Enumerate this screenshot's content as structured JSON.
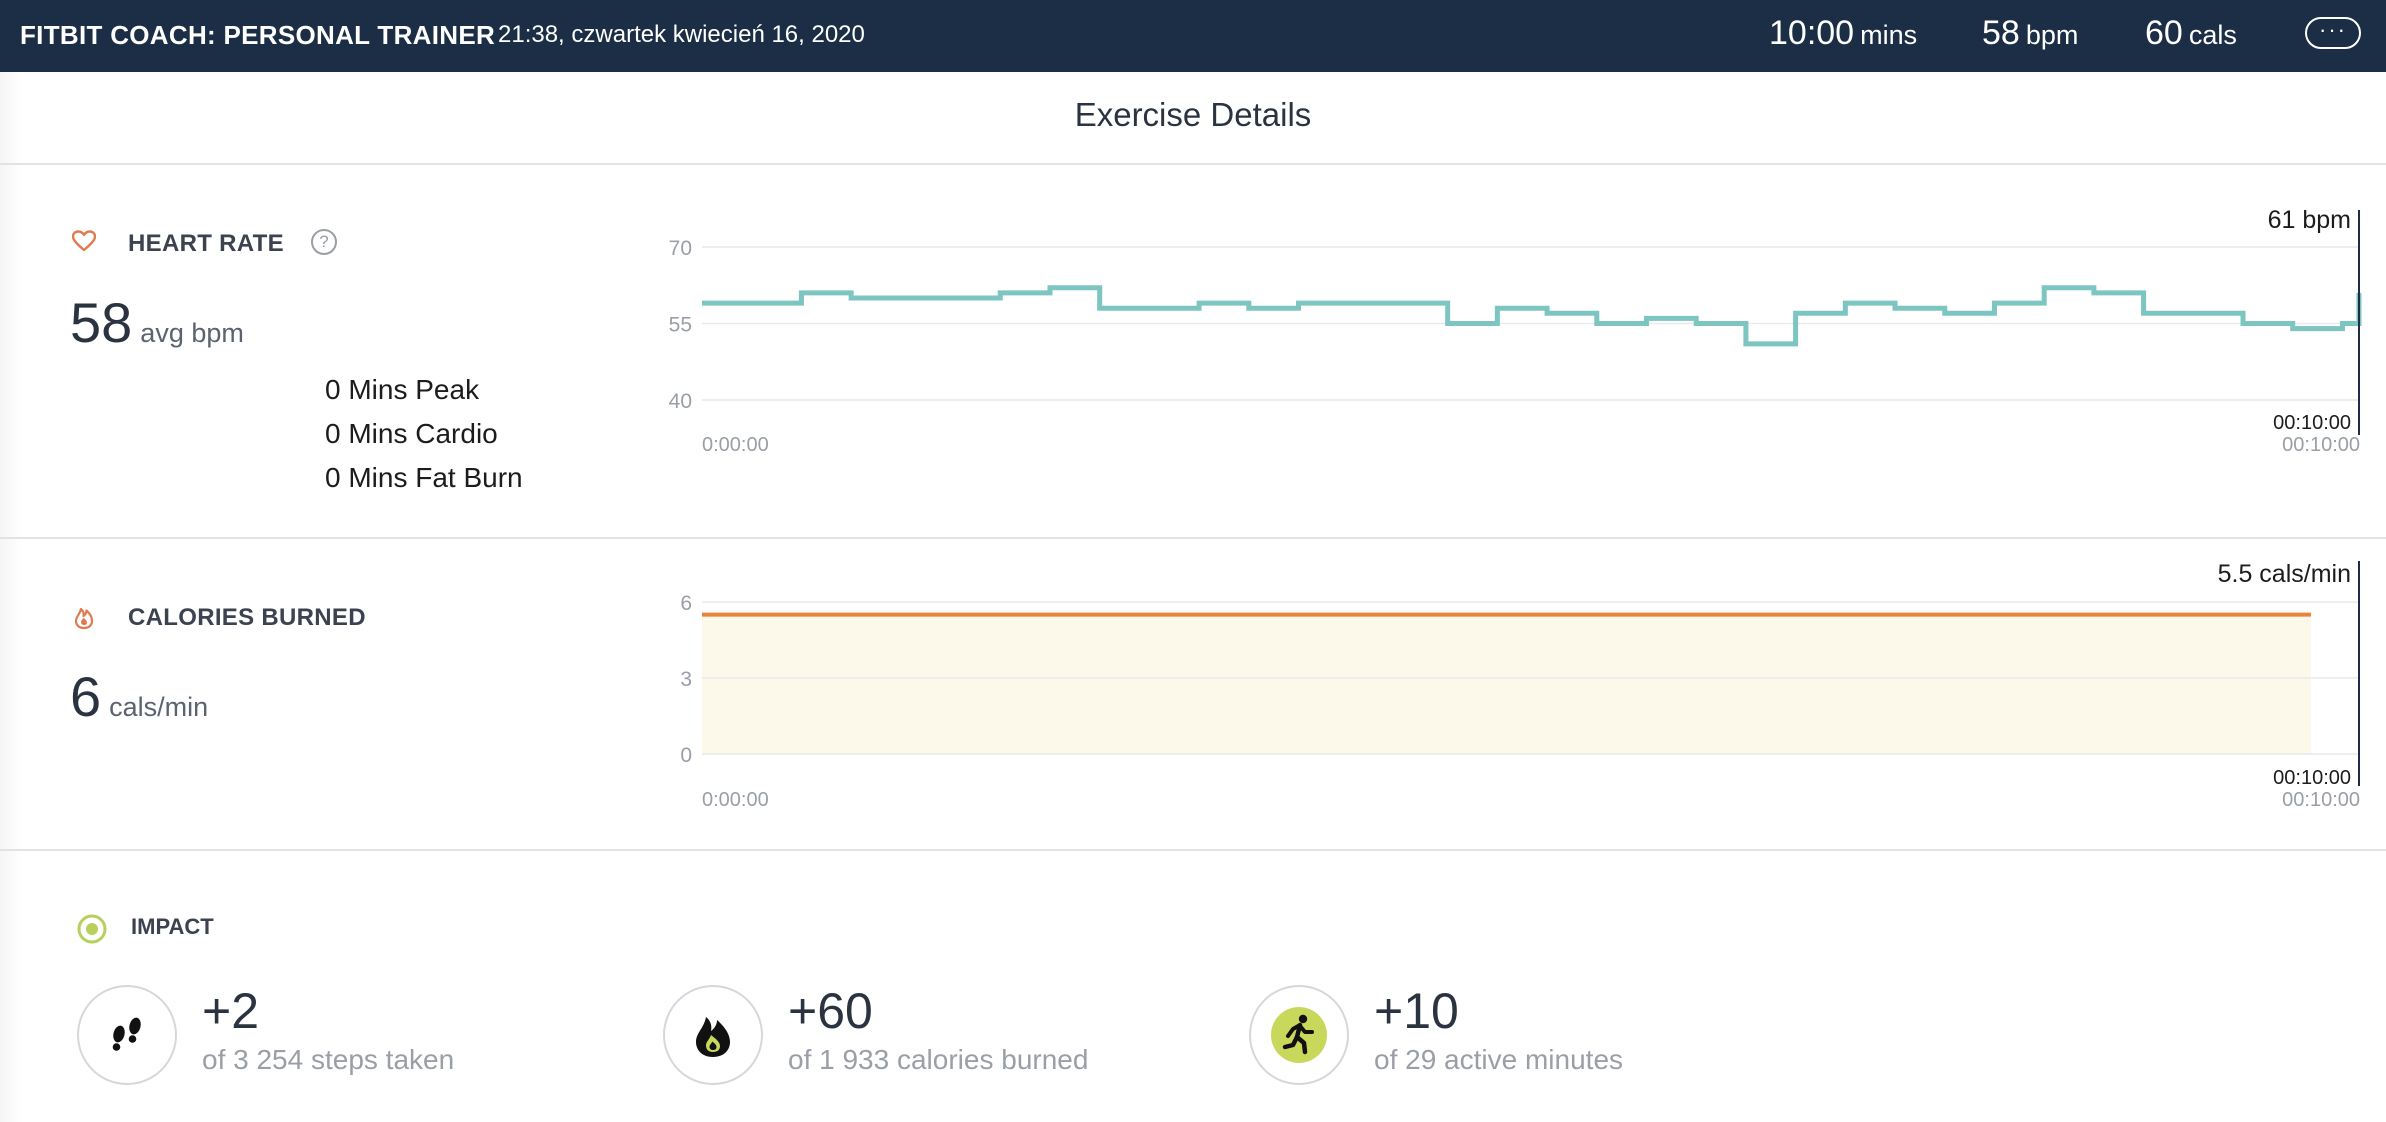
{
  "header": {
    "app_title": "FITBIT COACH: PERSONAL TRAINER",
    "datetime": "21:38, czwartek kwiecień 16, 2020",
    "stats": [
      {
        "value": "10:00",
        "unit": "mins"
      },
      {
        "value": "58",
        "unit": "bpm"
      },
      {
        "value": "60",
        "unit": "cals"
      }
    ],
    "more_label": "···"
  },
  "page_title": "Exercise Details",
  "heart_rate": {
    "heading": "HEART RATE",
    "help_label": "?",
    "avg_value": "58",
    "avg_unit": "avg bpm",
    "zones": [
      "0 Mins Peak",
      "0 Mins Cardio",
      "0 Mins Fat Burn"
    ],
    "current_readout": "61 bpm",
    "cursor_time": "00:10:00",
    "accent_color": "#e07b4f",
    "line_color": "#7cc5c1"
  },
  "calories": {
    "heading": "CALORIES BURNED",
    "value": "6",
    "unit": "cals/min",
    "current_readout": "5.5 cals/min",
    "cursor_time": "00:10:00",
    "line_color": "#e8833a",
    "fill_color": "#fcf8ea"
  },
  "impact": {
    "heading": "IMPACT",
    "cards": [
      {
        "icon": "footsteps-icon",
        "value": "+2",
        "desc": "of 3 254 steps taken"
      },
      {
        "icon": "flame-icon",
        "value": "+60",
        "desc": "of 1 933 calories burned"
      },
      {
        "icon": "running-person-icon",
        "value": "+10",
        "desc": "of 29 active minutes"
      }
    ]
  },
  "chart_data": [
    {
      "type": "line",
      "title": "",
      "xlabel": "",
      "ylabel": "",
      "x_ticks": [
        "0:00:00",
        "00:10:00"
      ],
      "y_ticks": [
        40,
        55,
        70
      ],
      "ylim": [
        40,
        70
      ],
      "grid": true,
      "x": [
        0,
        0.3,
        0.6,
        0.9,
        1.2,
        1.5,
        1.8,
        2.1,
        2.4,
        2.7,
        3.0,
        3.3,
        3.6,
        3.9,
        4.2,
        4.5,
        4.8,
        5.1,
        5.4,
        5.7,
        6.0,
        6.3,
        6.6,
        6.9,
        7.2,
        7.5,
        7.8,
        8.1,
        8.4,
        8.7,
        9.0,
        9.3,
        9.6,
        9.9,
        10.0
      ],
      "series": [
        {
          "name": "",
          "values": [
            59,
            59,
            61,
            60,
            60,
            60,
            61,
            62,
            58,
            58,
            59,
            58,
            59,
            59,
            59,
            55,
            58,
            57,
            55,
            56,
            55,
            51,
            57,
            59,
            58,
            57,
            59,
            62,
            61,
            57,
            57,
            55,
            54,
            55,
            61
          ]
        }
      ]
    },
    {
      "type": "area",
      "title": "",
      "xlabel": "",
      "ylabel": "",
      "x_ticks": [
        "0:00:00",
        "00:10:00"
      ],
      "y_ticks": [
        0,
        3,
        6
      ],
      "ylim": [
        0,
        6
      ],
      "grid": true,
      "x": [
        0,
        10
      ],
      "series": [
        {
          "name": "",
          "values": [
            5.5,
            5.5
          ]
        }
      ]
    }
  ]
}
